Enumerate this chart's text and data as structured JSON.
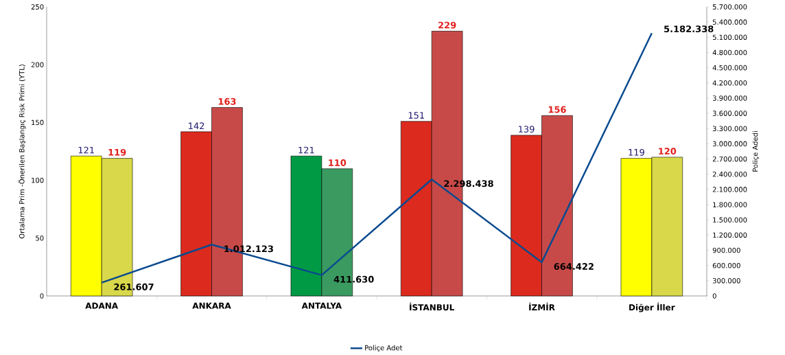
{
  "chart_data": {
    "type": "bar",
    "categories": [
      "ADANA",
      "ANKARA",
      "ANTALYA",
      "İSTANBUL",
      "İZMİR",
      "Diğer İller"
    ],
    "ylabel": "Ortalama Prim -Önerilen Başlangıç Risk Primi (YTL)",
    "y2label": "Poliçe Adedi",
    "ylim": [
      0,
      250
    ],
    "yticks": [
      0,
      50,
      100,
      150,
      200,
      250
    ],
    "y2lim": [
      0,
      5700000
    ],
    "y2ticks": [
      {
        "value": 0,
        "label": "0"
      },
      {
        "value": 300000,
        "label": "300.000"
      },
      {
        "value": 600000,
        "label": "600.000"
      },
      {
        "value": 900000,
        "label": "900.000"
      },
      {
        "value": 1200000,
        "label": "1.200.000"
      },
      {
        "value": 1500000,
        "label": "1.500.000"
      },
      {
        "value": 1800000,
        "label": "1.800.000"
      },
      {
        "value": 2100000,
        "label": "2.100.000"
      },
      {
        "value": 2400000,
        "label": "2.400.000"
      },
      {
        "value": 2700000,
        "label": "2.700.000"
      },
      {
        "value": 3000000,
        "label": "3.000.000"
      },
      {
        "value": 3300000,
        "label": "3.300.000"
      },
      {
        "value": 3600000,
        "label": "3.600.000"
      },
      {
        "value": 3900000,
        "label": "3.900.000"
      },
      {
        "value": 4200000,
        "label": "4.200.000"
      },
      {
        "value": 4500000,
        "label": "4.500.000"
      },
      {
        "value": 4800000,
        "label": "4.800.000"
      },
      {
        "value": 5100000,
        "label": "5.100.000"
      },
      {
        "value": 5400000,
        "label": "5.400.000"
      },
      {
        "value": 5700000,
        "label": "5.700.000"
      }
    ],
    "series": [
      {
        "colors": [
          "#ffff00",
          "#dc2a1e",
          "#009a44",
          "#dc2a1e",
          "#dc2a1e",
          "#ffff00"
        ],
        "values": [
          121,
          142,
          121,
          151,
          139,
          119
        ],
        "value_labels": [
          "121",
          "142",
          "121",
          "151",
          "139",
          "119"
        ]
      },
      {
        "colors": [
          "#d8d84a",
          "#c84a48",
          "#3a9a60",
          "#c84a48",
          "#c84a48",
          "#d8d84a"
        ],
        "values": [
          119,
          163,
          110,
          229,
          156,
          120
        ],
        "value_labels": [
          "119",
          "163",
          "110",
          "229",
          "156",
          "120"
        ]
      },
      {
        "name": "Poliçe Adet",
        "type": "line",
        "axis": "y2",
        "marker": "none",
        "color": "#0a4a8f",
        "values": [
          261607,
          1012123,
          411630,
          2298438,
          664422,
          5182338
        ],
        "value_labels": [
          "261.607",
          "1.012.123",
          "411.630",
          "2.298.438",
          "664.422",
          "5.182.338"
        ]
      }
    ],
    "legend": "bottom"
  }
}
